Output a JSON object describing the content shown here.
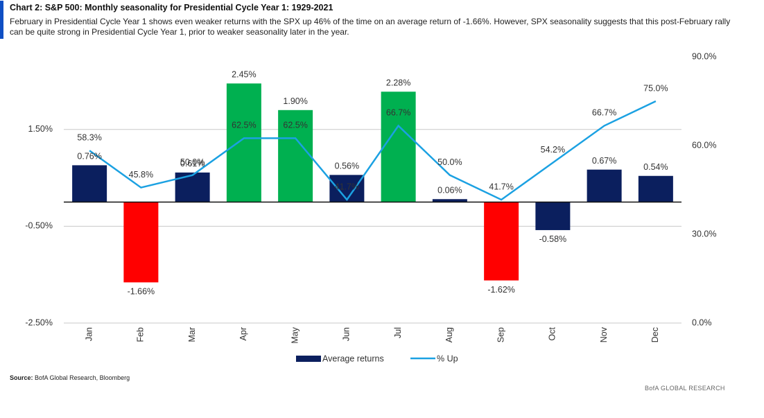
{
  "chart_data": {
    "type": "combo",
    "title": "Chart 2: S&P 500: Monthly seasonality for Presidential Cycle Year 1: 1929-2021",
    "subtitle": "February in Presidential Cycle Year 1 shows even weaker returns with the SPX up 46% of the time on an average return of -1.66%. However, SPX seasonality suggests that this post-February rally can be quite strong in Presidential Cycle Year 1, prior to weaker seasonality later in the year.",
    "source_label": "Source:",
    "source_text": "BofA Global Research, Bloomberg",
    "footer": "BofA GLOBAL RESEARCH",
    "categories": [
      "Jan",
      "Feb",
      "Mar",
      "Apr",
      "May",
      "Jun",
      "Jul",
      "Aug",
      "Sep",
      "Oct",
      "Nov",
      "Dec"
    ],
    "series": [
      {
        "name": "Average returns",
        "type": "bar",
        "color": "#0b1f5e",
        "colors": [
          "#0b1f5e",
          "#ff0000",
          "#0b1f5e",
          "#00b050",
          "#00b050",
          "#0b1f5e",
          "#00b050",
          "#0b1f5e",
          "#ff0000",
          "#0b1f5e",
          "#0b1f5e",
          "#0b1f5e"
        ],
        "values": [
          0.76,
          -1.66,
          0.61,
          2.45,
          1.9,
          0.56,
          2.28,
          0.06,
          -1.62,
          -0.58,
          0.67,
          0.54
        ],
        "value_labels": [
          "0.76%",
          "-1.66%",
          "0.61%",
          "2.45%",
          "1.90%",
          "0.56%",
          "2.28%",
          "0.06%",
          "-1.62%",
          "-0.58%",
          "0.67%",
          "0.54%"
        ]
      },
      {
        "name": "% Up",
        "type": "line",
        "axis": "y2",
        "color": "#1ba1e2",
        "values": [
          58.3,
          45.8,
          50.0,
          62.5,
          62.5,
          41.7,
          66.7,
          50.0,
          41.7,
          54.2,
          66.7,
          75.0
        ],
        "value_labels": [
          "58.3%",
          "45.8%",
          "50.0%",
          "62.5%",
          "62.5%",
          "41.7%",
          "66.7%",
          "50.0%",
          "41.7%",
          "54.2%",
          "66.7%",
          "75.0%"
        ]
      }
    ],
    "ylim": [
      -2.5,
      3.0
    ],
    "yticks": [
      {
        "value": -2.5,
        "label": "-2.50%"
      },
      {
        "value": -0.5,
        "label": "-0.50%"
      },
      {
        "value": 1.5,
        "label": "1.50%"
      }
    ],
    "y2lim": [
      0,
      90
    ],
    "y2ticks": [
      {
        "value": 0,
        "label": "0.0%"
      },
      {
        "value": 30,
        "label": "30.0%"
      },
      {
        "value": 60,
        "label": "60.0%"
      },
      {
        "value": 90,
        "label": "90.0%"
      }
    ],
    "grid": true,
    "legend": "bottom"
  }
}
